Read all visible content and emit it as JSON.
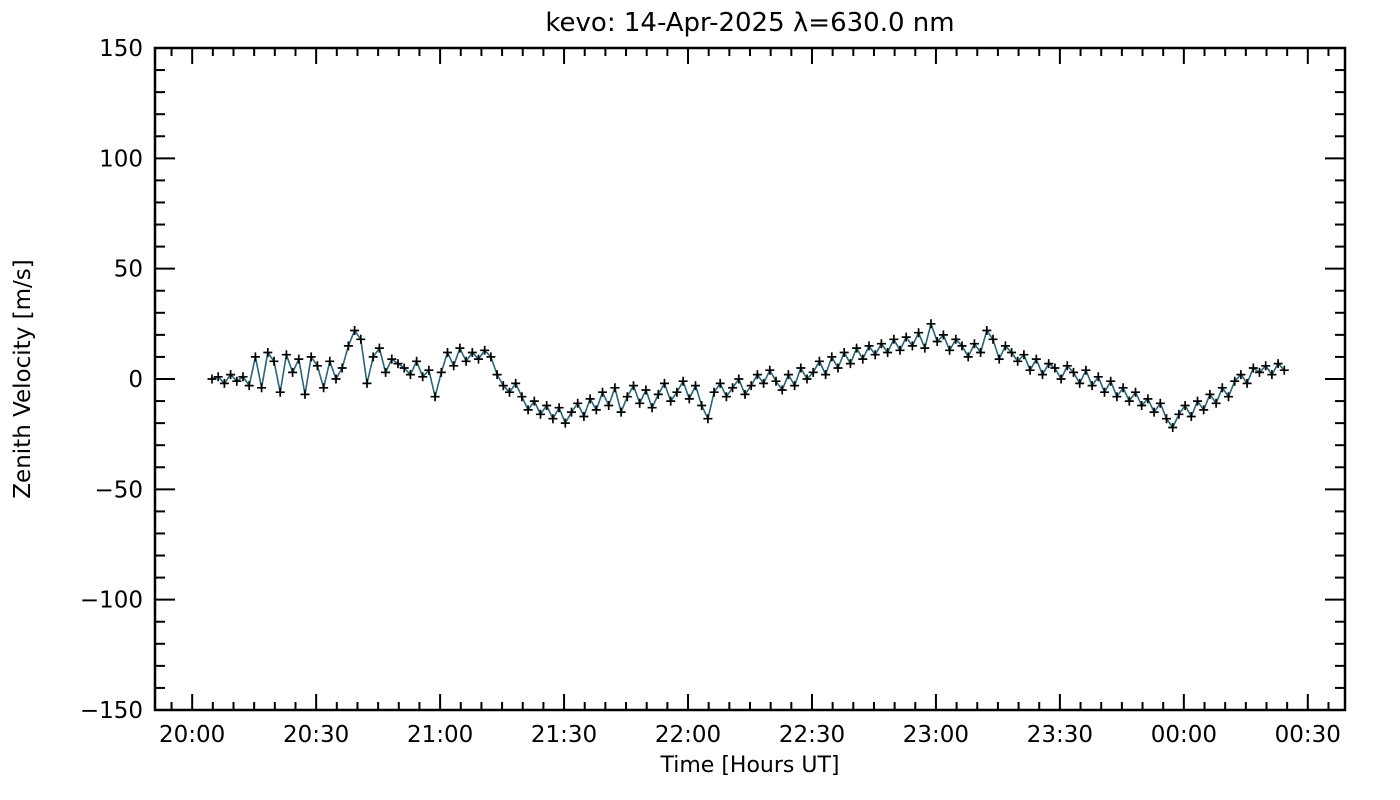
{
  "chart_data": {
    "type": "line",
    "title": "kevo: 14-Apr-2025 λ=630.0 nm",
    "xlabel": "Time [Hours UT]",
    "ylabel": "Zenith Velocity [m/s]",
    "background_color": "#ffffff",
    "axis_color": "#000000",
    "grid": "off",
    "legend": "none",
    "x_axis": {
      "unit": "hours UT",
      "min": 19.85,
      "max": 24.65,
      "major_step": 0.5,
      "minor_divisions": 6,
      "tick_labels": [
        "20:00",
        "20:30",
        "21:00",
        "21:30",
        "22:00",
        "22:30",
        "23:00",
        "23:30",
        "00:00",
        "00:30"
      ],
      "first_major": 20.0
    },
    "y_axis": {
      "unit": "m/s",
      "min": -150,
      "max": 150,
      "major_step": 50,
      "minor_divisions": 5,
      "tick_labels": [
        "−150",
        "−100",
        "−50",
        "0",
        "50",
        "100",
        "150"
      ],
      "first_major": -150
    },
    "series": [
      {
        "name": "zenith-velocity",
        "marker": "plus",
        "marker_color": "#000000",
        "line_color": "#2d6474",
        "x_start_hours": 20.08,
        "x_step_hours": 0.025,
        "values": [
          0,
          1,
          -2,
          2,
          -1,
          1,
          -3,
          10,
          -4,
          12,
          8,
          -6,
          11,
          3,
          9,
          -7,
          10,
          6,
          -4,
          8,
          0,
          5,
          15,
          22,
          18,
          -2,
          10,
          14,
          3,
          9,
          7,
          5,
          2,
          8,
          1,
          4,
          -8,
          3,
          12,
          6,
          14,
          8,
          12,
          9,
          13,
          10,
          2,
          -3,
          -6,
          -2,
          -8,
          -14,
          -10,
          -16,
          -12,
          -18,
          -13,
          -20,
          -15,
          -11,
          -17,
          -9,
          -14,
          -6,
          -12,
          -4,
          -15,
          -8,
          -3,
          -11,
          -5,
          -13,
          -7,
          -2,
          -10,
          -6,
          -1,
          -9,
          -3,
          -12,
          -18,
          -6,
          -2,
          -8,
          -4,
          0,
          -7,
          -3,
          2,
          -2,
          4,
          -1,
          -5,
          2,
          -3,
          5,
          0,
          3,
          8,
          2,
          10,
          5,
          12,
          7,
          14,
          9,
          15,
          11,
          16,
          12,
          18,
          13,
          19,
          15,
          21,
          14,
          25,
          17,
          20,
          13,
          18,
          15,
          10,
          16,
          12,
          22,
          18,
          9,
          15,
          12,
          8,
          11,
          4,
          9,
          2,
          7,
          5,
          0,
          6,
          3,
          -2,
          4,
          -3,
          1,
          -6,
          -1,
          -8,
          -4,
          -10,
          -6,
          -12,
          -9,
          -15,
          -11,
          -18,
          -22,
          -16,
          -12,
          -17,
          -10,
          -14,
          -7,
          -11,
          -4,
          -8,
          -1,
          2,
          -2,
          5,
          3,
          6,
          2,
          7,
          4
        ]
      }
    ]
  }
}
